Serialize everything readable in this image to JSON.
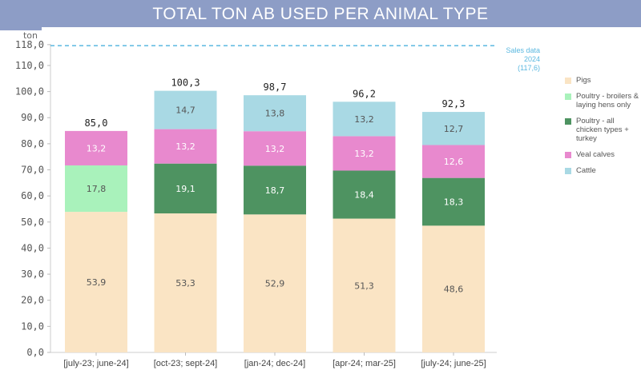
{
  "title": "TOTAL TON AB USED PER ANIMAL TYPE",
  "chart_data": {
    "type": "stacked-bar",
    "title": "TOTAL TON AB USED PER ANIMAL TYPE",
    "ylabel": "ton",
    "ylim": [
      0,
      118
    ],
    "yticks": [
      "0,0",
      "10,0",
      "20,0",
      "30,0",
      "40,0",
      "50,0",
      "60,0",
      "70,0",
      "80,0",
      "90,0",
      "100,0",
      "110,0",
      "118,0"
    ],
    "ytick_values": [
      0,
      10,
      20,
      30,
      40,
      50,
      60,
      70,
      80,
      90,
      100,
      110,
      118
    ],
    "categories": [
      "[july-23; june-24]",
      "[oct-23; sept-24]",
      "[jan-24; dec-24]",
      "[apr-24; mar-25]",
      "[july-24; june-25]"
    ],
    "series": [
      {
        "name": "Pigs",
        "color": "#fae4c4",
        "values": [
          53.9,
          53.3,
          52.9,
          51.3,
          48.6
        ],
        "labels": [
          "53,9",
          "53,3",
          "52,9",
          "51,3",
          "48,6"
        ]
      },
      {
        "name": "Poultry - broilers & laying hens only",
        "color": "#a9f2bb",
        "values": [
          17.8,
          null,
          null,
          null,
          null
        ],
        "labels": [
          "17,8",
          "",
          "",
          "",
          ""
        ]
      },
      {
        "name": "Poultry - all chicken types + turkey",
        "color": "#4e9361",
        "values": [
          null,
          19.1,
          18.7,
          18.4,
          18.3
        ],
        "labels": [
          "",
          "19,1",
          "18,7",
          "18,4",
          "18,3"
        ]
      },
      {
        "name": "Veal calves",
        "color": "#e889ce",
        "values": [
          13.2,
          13.2,
          13.2,
          13.2,
          12.6
        ],
        "labels": [
          "13,2",
          "13,2",
          "13,2",
          "13,2",
          "12,6"
        ]
      },
      {
        "name": "Cattle",
        "color": "#a9d9e4",
        "values": [
          null,
          14.7,
          13.8,
          13.2,
          12.7
        ],
        "labels": [
          "",
          "14,7",
          "13,8",
          "13,2",
          "12,7"
        ]
      }
    ],
    "totals": [
      "85,0",
      "100,3",
      "98,7",
      "96,2",
      "92,3"
    ],
    "reference_line": {
      "value": 117.6,
      "label": "Sales data 2024",
      "value_label": "(117,6)",
      "color": "#5bb8e0",
      "style": "dashed"
    },
    "legend_position": "right",
    "grid": false
  }
}
